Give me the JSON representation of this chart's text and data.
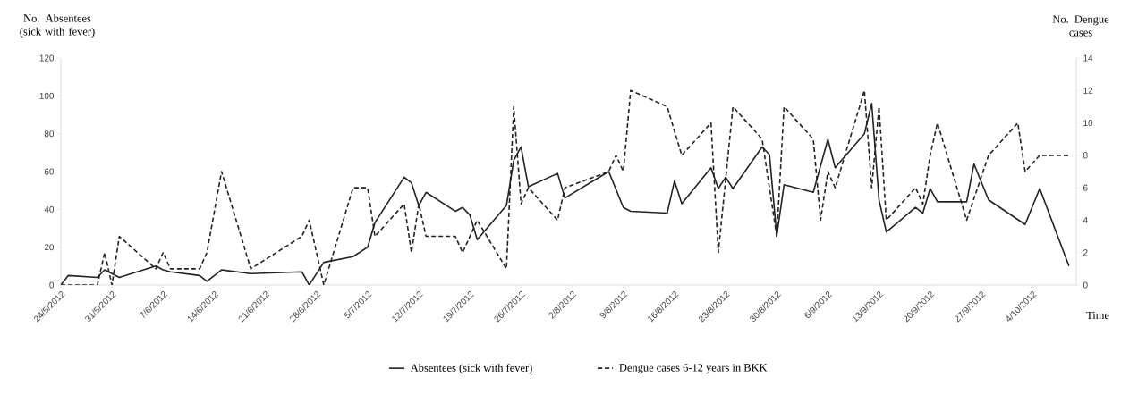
{
  "chart_data": {
    "type": "line",
    "ylabel": "No. Absentees (sick with fever)",
    "y2label": "No. Dengue cases",
    "xlabel": "Time",
    "xlim": [
      "2012-05-24",
      "2012-10-10"
    ],
    "xticks": [
      {
        "value": "2012-05-24",
        "label": "24/5/2012"
      },
      {
        "value": "2012-05-31",
        "label": "31/5/2012"
      },
      {
        "value": "2012-06-07",
        "label": "7/6/2012"
      },
      {
        "value": "2012-06-14",
        "label": "14/6/2012"
      },
      {
        "value": "2012-06-21",
        "label": "21/6/2012"
      },
      {
        "value": "2012-06-28",
        "label": "28/6/2012"
      },
      {
        "value": "2012-07-05",
        "label": "5/7/2012"
      },
      {
        "value": "2012-07-12",
        "label": "12/7/2012"
      },
      {
        "value": "2012-07-19",
        "label": "19/7/2012"
      },
      {
        "value": "2012-07-26",
        "label": "26/7/2012"
      },
      {
        "value": "2012-08-02",
        "label": "2/8/2012"
      },
      {
        "value": "2012-08-09",
        "label": "9/8/2012"
      },
      {
        "value": "2012-08-16",
        "label": "16/8/2012"
      },
      {
        "value": "2012-08-23",
        "label": "23/8/2012"
      },
      {
        "value": "2012-08-30",
        "label": "30/8/2012"
      },
      {
        "value": "2012-09-06",
        "label": "6/9/2012"
      },
      {
        "value": "2012-09-13",
        "label": "13/9/2012"
      },
      {
        "value": "2012-09-20",
        "label": "20/9/2012"
      },
      {
        "value": "2012-09-27",
        "label": "27/9/2012"
      },
      {
        "value": "2012-10-04",
        "label": "4/10/2012"
      }
    ],
    "ylim": [
      0,
      120
    ],
    "yticks": [
      0,
      20,
      40,
      60,
      80,
      100,
      120
    ],
    "y2lim": [
      0,
      14
    ],
    "y2ticks": [
      0,
      2,
      4,
      6,
      8,
      10,
      12,
      14
    ],
    "grid": false,
    "legend": "bottom",
    "series": [
      {
        "name": "Absentees (sick with fever)",
        "color": "#222222",
        "line_style": "solid",
        "x": [
          "2012-05-24",
          "2012-05-25",
          "2012-05-29",
          "2012-05-30",
          "2012-06-01",
          "2012-06-06",
          "2012-06-07",
          "2012-06-08",
          "2012-06-12",
          "2012-06-13",
          "2012-06-15",
          "2012-06-19",
          "2012-06-26",
          "2012-06-27",
          "2012-06-29",
          "2012-07-03",
          "2012-07-05",
          "2012-07-06",
          "2012-07-10",
          "2012-07-11",
          "2012-07-12",
          "2012-07-13",
          "2012-07-17",
          "2012-07-18",
          "2012-07-19",
          "2012-07-20",
          "2012-07-24",
          "2012-07-25",
          "2012-07-26",
          "2012-07-27",
          "2012-07-31",
          "2012-08-01",
          "2012-08-07",
          "2012-08-09",
          "2012-08-10",
          "2012-08-15",
          "2012-08-16",
          "2012-08-17",
          "2012-08-21",
          "2012-08-22",
          "2012-08-23",
          "2012-08-24",
          "2012-08-28",
          "2012-08-29",
          "2012-08-30",
          "2012-08-31",
          "2012-09-04",
          "2012-09-06",
          "2012-09-07",
          "2012-09-11",
          "2012-09-12",
          "2012-09-13",
          "2012-09-14",
          "2012-09-18",
          "2012-09-19",
          "2012-09-20",
          "2012-09-21",
          "2012-09-25",
          "2012-09-26",
          "2012-09-28",
          "2012-10-03",
          "2012-10-05",
          "2012-10-09"
        ],
        "values": [
          0,
          5,
          4,
          8,
          4,
          10,
          8,
          7,
          5,
          2,
          8,
          6,
          7,
          0,
          12,
          15,
          20,
          33,
          57,
          54,
          42,
          49,
          39,
          41,
          37,
          24,
          42,
          66,
          73,
          52,
          59,
          46,
          60,
          41,
          39,
          38,
          55,
          43,
          62,
          51,
          57,
          51,
          73,
          69,
          26,
          53,
          49,
          77,
          62,
          80,
          96,
          45,
          28,
          41,
          38,
          51,
          44,
          44,
          64,
          45,
          32,
          51,
          10
        ]
      },
      {
        "name": "Dengue cases 6-12 years in BKK",
        "color": "#222222",
        "line_style": "dashed",
        "axis": "y2",
        "x": [
          "2012-05-24",
          "2012-05-29",
          "2012-05-30",
          "2012-05-31",
          "2012-06-01",
          "2012-06-06",
          "2012-06-07",
          "2012-06-08",
          "2012-06-12",
          "2012-06-13",
          "2012-06-15",
          "2012-06-19",
          "2012-06-26",
          "2012-06-27",
          "2012-06-29",
          "2012-07-03",
          "2012-07-05",
          "2012-07-06",
          "2012-07-10",
          "2012-07-11",
          "2012-07-12",
          "2012-07-13",
          "2012-07-17",
          "2012-07-18",
          "2012-07-20",
          "2012-07-24",
          "2012-07-25",
          "2012-07-26",
          "2012-07-27",
          "2012-07-31",
          "2012-08-01",
          "2012-08-07",
          "2012-08-08",
          "2012-08-09",
          "2012-08-10",
          "2012-08-15",
          "2012-08-17",
          "2012-08-21",
          "2012-08-22",
          "2012-08-24",
          "2012-08-28",
          "2012-08-30",
          "2012-08-31",
          "2012-09-04",
          "2012-09-05",
          "2012-09-06",
          "2012-09-07",
          "2012-09-11",
          "2012-09-12",
          "2012-09-13",
          "2012-09-14",
          "2012-09-18",
          "2012-09-19",
          "2012-09-20",
          "2012-09-21",
          "2012-09-25",
          "2012-09-28",
          "2012-10-02",
          "2012-10-03",
          "2012-10-05",
          "2012-10-09"
        ],
        "values": [
          0,
          0,
          2,
          0,
          3,
          1,
          2,
          1,
          1,
          2,
          7,
          1,
          3,
          4,
          0,
          6,
          6,
          3,
          5,
          2,
          5,
          3,
          3,
          2,
          4,
          1,
          11,
          5,
          6,
          4,
          6,
          7,
          8,
          7,
          12,
          11,
          8,
          10,
          2,
          11,
          9,
          3,
          11,
          9,
          4,
          7,
          6,
          12,
          6,
          11,
          4,
          6,
          5,
          8,
          10,
          4,
          8,
          10,
          7,
          8,
          8
        ]
      }
    ]
  }
}
